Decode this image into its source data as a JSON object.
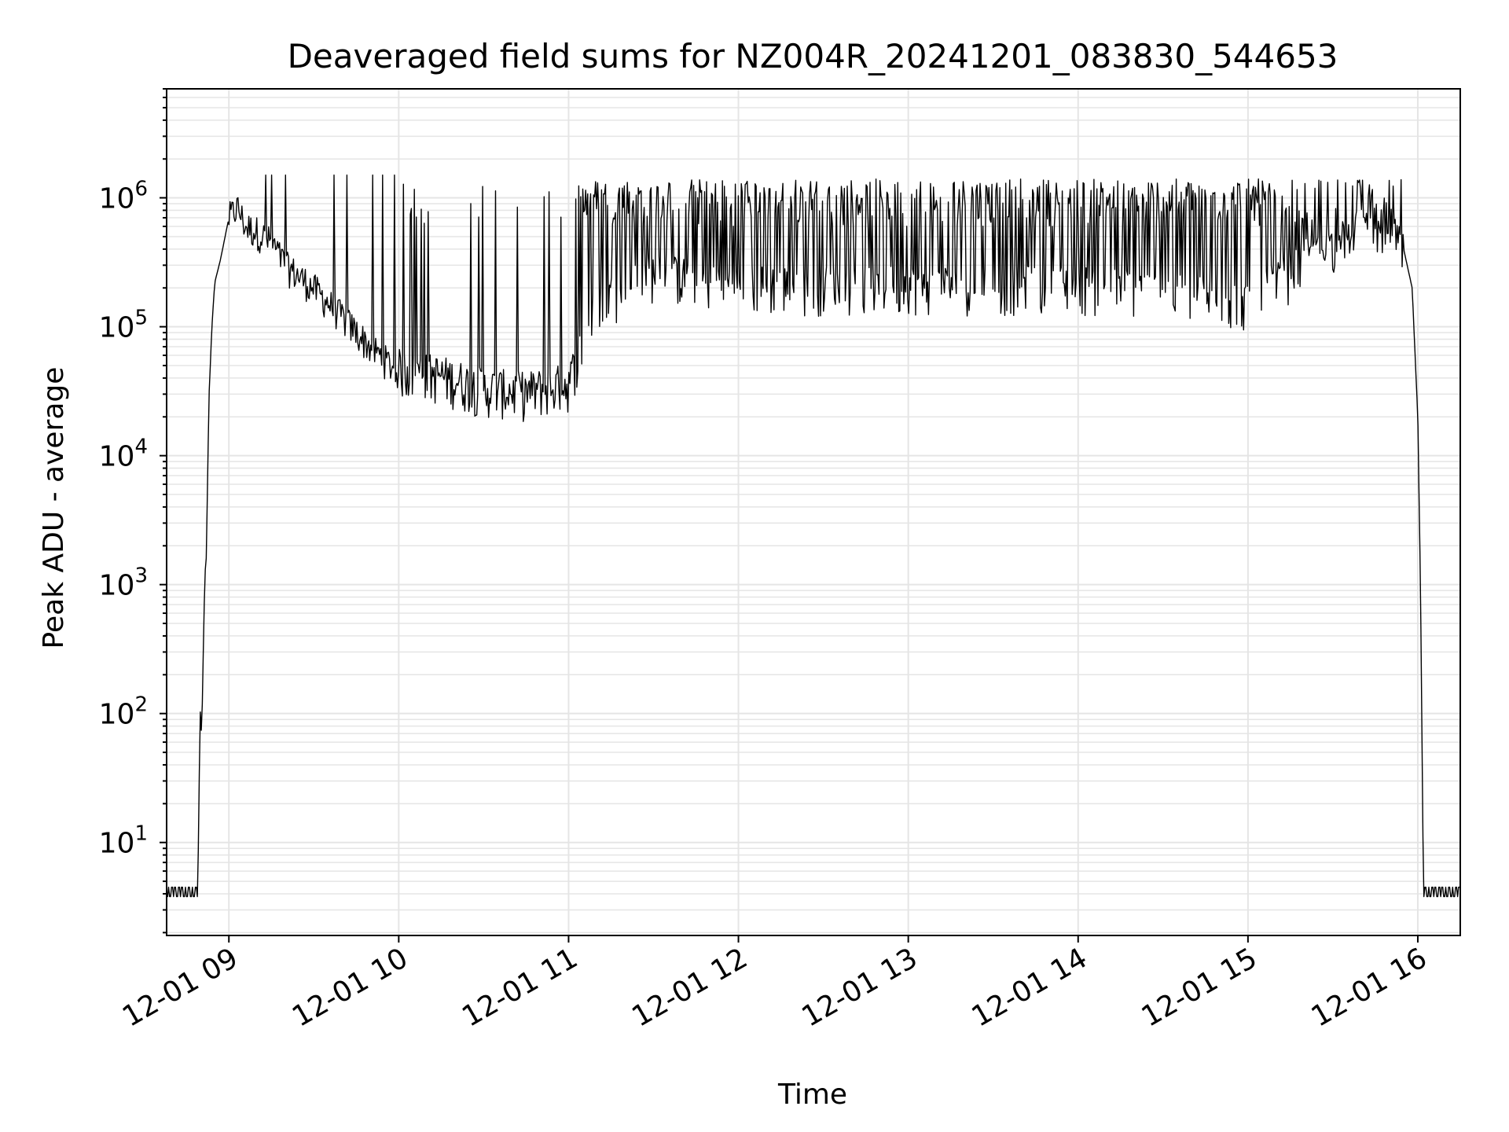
{
  "chart_data": {
    "type": "line",
    "title": "Deaveraged field sums for NZ004R_20241201_083830_544653",
    "xlabel": "Time",
    "ylabel": "Peak ADU - average",
    "x_tick_labels": [
      "12-01 09",
      "12-01 10",
      "12-01 11",
      "12-01 12",
      "12-01 13",
      "12-01 14",
      "12-01 15",
      "12-01 16"
    ],
    "y_tick_labels": [
      {
        "base": "10",
        "exp": "1"
      },
      {
        "base": "10",
        "exp": "2"
      },
      {
        "base": "10",
        "exp": "3"
      },
      {
        "base": "10",
        "exp": "4"
      },
      {
        "base": "10",
        "exp": "5"
      },
      {
        "base": "10",
        "exp": "6"
      }
    ],
    "x_axis": "time",
    "xlim": [
      "2024-12-01 08:38",
      "2024-12-01 16:15"
    ],
    "y_scale": "log",
    "ylim": [
      1.9,
      7000000
    ],
    "grid": true,
    "line_color": "#000000",
    "grid_color": "#e5e5e5",
    "series": [
      {
        "points": [
          [
            "08:38",
            3.8
          ],
          [
            "08:49",
            3.8
          ],
          [
            "08:49:30",
            30
          ],
          [
            "08:50",
            140
          ],
          [
            "08:50:20",
            60
          ],
          [
            "08:51",
            330
          ],
          [
            "08:51:30",
            1200
          ],
          [
            "08:52",
            1600
          ],
          [
            "08:53",
            30000
          ],
          [
            "08:54",
            100000
          ],
          [
            "08:55",
            220000
          ],
          [
            "08:57",
            330000
          ],
          [
            "09:00",
            700000
          ],
          [
            "09:03",
            850000
          ],
          [
            "09:06",
            600000
          ],
          [
            "09:10",
            550000
          ],
          [
            "09:15",
            450000
          ],
          [
            "09:20",
            300000
          ],
          [
            "09:30",
            200000
          ],
          [
            "09:40",
            120000
          ],
          [
            "09:50",
            70000
          ],
          [
            "10:00",
            45000
          ],
          [
            "10:15",
            40000
          ],
          [
            "10:30",
            32000
          ],
          [
            "10:45",
            30000
          ],
          [
            "11:00",
            35000
          ],
          [
            "11:10",
            150000
          ],
          [
            "11:30",
            250000
          ],
          [
            "12:00",
            200000
          ],
          [
            "12:30",
            200000
          ],
          [
            "13:00",
            200000
          ],
          [
            "13:30",
            200000
          ],
          [
            "14:00",
            200000
          ],
          [
            "14:30",
            180000
          ],
          [
            "15:00",
            150000
          ],
          [
            "15:15",
            250000
          ],
          [
            "15:30",
            400000
          ],
          [
            "15:45",
            550000
          ],
          [
            "15:50",
            500000
          ],
          [
            "15:55",
            400000
          ],
          [
            "15:58",
            200000
          ],
          [
            "16:00",
            20000
          ],
          [
            "16:01",
            800
          ],
          [
            "16:02",
            3.8
          ],
          [
            "16:15",
            3.8
          ]
        ]
      }
    ]
  }
}
